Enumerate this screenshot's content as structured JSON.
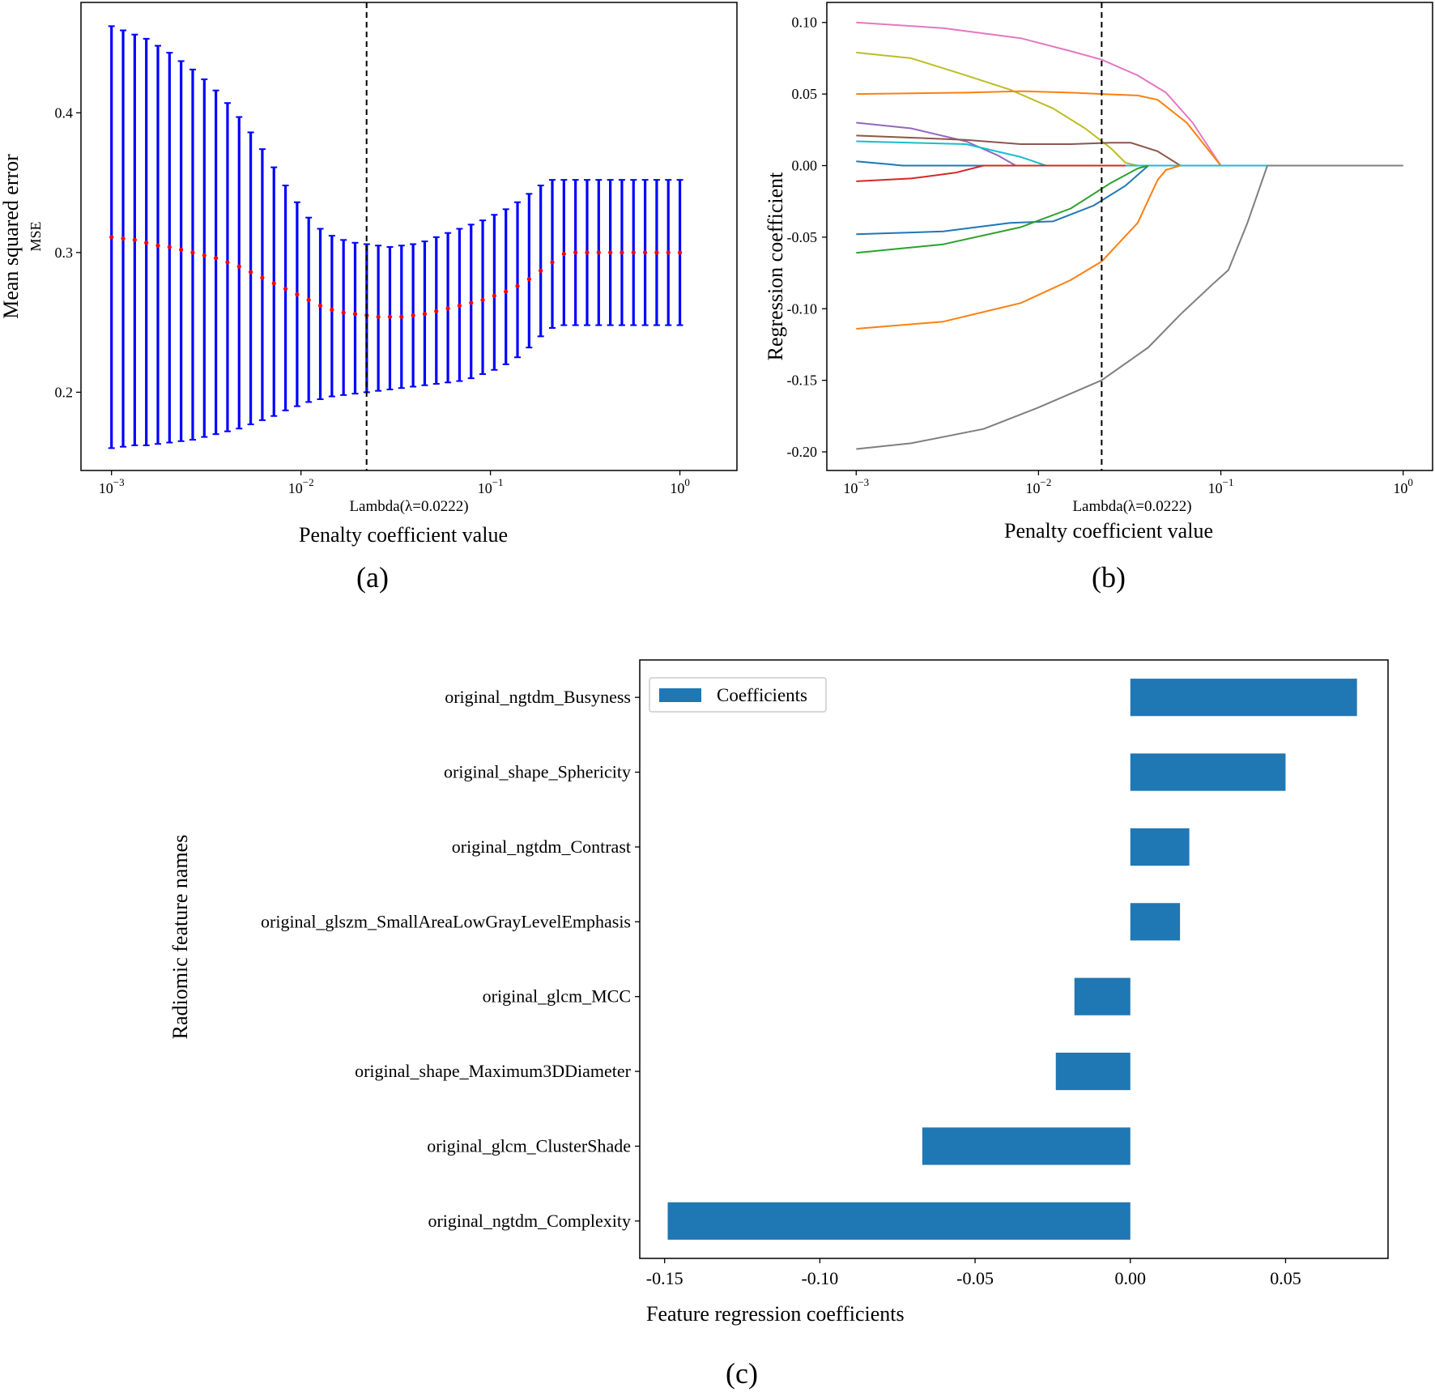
{
  "chart_data": [
    {
      "id": "a",
      "type": "errorbar",
      "panel_label": "(a)",
      "xlabel": "Penalty coefficient value",
      "xlabel_sub": "Lambda(λ=0.0222)",
      "ylabel": "Mean squared error",
      "ylabel_sub": "MSE",
      "xscale": "log",
      "xlim": [
        0.00069,
        2.0
      ],
      "ylim": [
        0.144,
        0.479
      ],
      "xticks": [
        {
          "value": 0.001,
          "base": "10",
          "exp": "−3"
        },
        {
          "value": 0.01,
          "base": "10",
          "exp": "−2"
        },
        {
          "value": 0.1,
          "base": "10",
          "exp": "−1"
        },
        {
          "value": 1,
          "base": "10",
          "exp": "0"
        }
      ],
      "yticks": [
        {
          "value": 0.2,
          "label": "0.2"
        },
        {
          "value": 0.3,
          "label": "0.3"
        },
        {
          "value": 0.4,
          "label": "0.4"
        }
      ],
      "vline": 0.0222,
      "lambda_range": [
        0.001,
        1
      ],
      "n_points": 50,
      "mean": [
        0.311,
        0.31,
        0.309,
        0.307,
        0.305,
        0.304,
        0.302,
        0.3,
        0.298,
        0.296,
        0.293,
        0.29,
        0.286,
        0.282,
        0.278,
        0.274,
        0.27,
        0.266,
        0.262,
        0.259,
        0.257,
        0.256,
        0.255,
        0.254,
        0.254,
        0.254,
        0.255,
        0.256,
        0.258,
        0.26,
        0.262,
        0.264,
        0.266,
        0.269,
        0.272,
        0.276,
        0.281,
        0.287,
        0.293,
        0.299,
        0.3,
        0.3,
        0.3,
        0.3,
        0.3,
        0.3,
        0.3,
        0.3,
        0.3,
        0.3
      ],
      "upper": [
        0.462,
        0.459,
        0.456,
        0.453,
        0.448,
        0.443,
        0.437,
        0.431,
        0.424,
        0.416,
        0.407,
        0.397,
        0.386,
        0.374,
        0.361,
        0.348,
        0.336,
        0.325,
        0.317,
        0.312,
        0.309,
        0.307,
        0.306,
        0.305,
        0.304,
        0.305,
        0.306,
        0.308,
        0.311,
        0.314,
        0.317,
        0.32,
        0.323,
        0.327,
        0.331,
        0.336,
        0.342,
        0.348,
        0.352,
        0.352,
        0.352,
        0.352,
        0.352,
        0.352,
        0.352,
        0.352,
        0.352,
        0.352,
        0.352,
        0.352
      ],
      "lower": [
        0.16,
        0.161,
        0.162,
        0.162,
        0.163,
        0.164,
        0.165,
        0.166,
        0.168,
        0.17,
        0.172,
        0.174,
        0.177,
        0.18,
        0.183,
        0.187,
        0.19,
        0.193,
        0.195,
        0.197,
        0.198,
        0.199,
        0.2,
        0.201,
        0.202,
        0.203,
        0.204,
        0.205,
        0.206,
        0.207,
        0.208,
        0.21,
        0.213,
        0.216,
        0.22,
        0.225,
        0.232,
        0.24,
        0.246,
        0.248,
        0.248,
        0.248,
        0.248,
        0.248,
        0.248,
        0.248,
        0.248,
        0.248,
        0.248,
        0.248
      ],
      "colors": {
        "bars": "#0000ff",
        "points": "#ff0000",
        "vline": "#000000"
      }
    },
    {
      "id": "b",
      "type": "line",
      "panel_label": "(b)",
      "xlabel": "Penalty coefficient value",
      "xlabel_sub": "Lambda(λ=0.0222)",
      "ylabel": "Regression coefficient",
      "xscale": "log",
      "xlim": [
        0.00069,
        1.45
      ],
      "ylim": [
        -0.213,
        0.114
      ],
      "xticks": [
        {
          "value": 0.001,
          "base": "10",
          "exp": "−3"
        },
        {
          "value": 0.01,
          "base": "10",
          "exp": "−2"
        },
        {
          "value": 0.1,
          "base": "10",
          "exp": "−1"
        },
        {
          "value": 1,
          "base": "10",
          "exp": "0"
        }
      ],
      "yticks": [
        {
          "value": 0.1,
          "label": "0.10"
        },
        {
          "value": 0.05,
          "label": "0.05"
        },
        {
          "value": 0.0,
          "label": "0.00"
        },
        {
          "value": -0.05,
          "label": "-0.05"
        },
        {
          "value": -0.1,
          "label": "-0.10"
        },
        {
          "value": -0.15,
          "label": "-0.15"
        },
        {
          "value": -0.2,
          "label": "-0.20"
        }
      ],
      "vline": 0.0222,
      "series": [
        {
          "color": "#e377c2",
          "points": [
            [
              0.001,
              0.1
            ],
            [
              0.003,
              0.096
            ],
            [
              0.008,
              0.089
            ],
            [
              0.015,
              0.08
            ],
            [
              0.0222,
              0.074
            ],
            [
              0.035,
              0.063
            ],
            [
              0.05,
              0.051
            ],
            [
              0.07,
              0.03
            ],
            [
              0.1,
              0.0
            ]
          ]
        },
        {
          "color": "#bcbd22",
          "points": [
            [
              0.001,
              0.079
            ],
            [
              0.002,
              0.075
            ],
            [
              0.004,
              0.063
            ],
            [
              0.007,
              0.053
            ],
            [
              0.012,
              0.04
            ],
            [
              0.018,
              0.026
            ],
            [
              0.025,
              0.012
            ],
            [
              0.03,
              0.002
            ],
            [
              0.035,
              0.0
            ]
          ]
        },
        {
          "color": "#ff7f0e",
          "points": [
            [
              0.001,
              0.05
            ],
            [
              0.004,
              0.051
            ],
            [
              0.008,
              0.052
            ],
            [
              0.015,
              0.051
            ],
            [
              0.0222,
              0.05
            ],
            [
              0.035,
              0.049
            ],
            [
              0.045,
              0.046
            ],
            [
              0.065,
              0.03
            ],
            [
              0.1,
              0.0
            ]
          ]
        },
        {
          "color": "#9467bd",
          "points": [
            [
              0.001,
              0.03
            ],
            [
              0.002,
              0.026
            ],
            [
              0.004,
              0.017
            ],
            [
              0.006,
              0.007
            ],
            [
              0.0075,
              0.0
            ]
          ]
        },
        {
          "color": "#8c564b",
          "points": [
            [
              0.001,
              0.021
            ],
            [
              0.004,
              0.018
            ],
            [
              0.008,
              0.015
            ],
            [
              0.015,
              0.015
            ],
            [
              0.025,
              0.016
            ],
            [
              0.032,
              0.016
            ],
            [
              0.045,
              0.01
            ],
            [
              0.06,
              0.0
            ]
          ]
        },
        {
          "color": "#17becf",
          "points": [
            [
              0.001,
              0.017
            ],
            [
              0.004,
              0.015
            ],
            [
              0.008,
              0.006
            ],
            [
              0.011,
              0.0
            ],
            [
              1,
              0.0
            ]
          ]
        },
        {
          "color": "#1f77b4",
          "points": [
            [
              0.001,
              0.003
            ],
            [
              0.0015,
              0.001
            ],
            [
              0.0018,
              0.0
            ],
            [
              0.03,
              0.0
            ]
          ]
        },
        {
          "color": "#d62728",
          "points": [
            [
              0.001,
              -0.011
            ],
            [
              0.002,
              -0.009
            ],
            [
              0.0035,
              -0.005
            ],
            [
              0.005,
              0.0
            ],
            [
              0.03,
              0.0
            ]
          ]
        },
        {
          "color": "#1f77b4",
          "points": [
            [
              0.001,
              -0.048
            ],
            [
              0.003,
              -0.046
            ],
            [
              0.007,
              -0.04
            ],
            [
              0.012,
              -0.039
            ],
            [
              0.02,
              -0.028
            ],
            [
              0.03,
              -0.014
            ],
            [
              0.04,
              0.0
            ]
          ]
        },
        {
          "color": "#2ca02c",
          "points": [
            [
              0.001,
              -0.061
            ],
            [
              0.003,
              -0.055
            ],
            [
              0.008,
              -0.043
            ],
            [
              0.015,
              -0.03
            ],
            [
              0.025,
              -0.012
            ],
            [
              0.035,
              -0.002
            ],
            [
              0.04,
              0.0
            ]
          ]
        },
        {
          "color": "#ff7f0e",
          "points": [
            [
              0.001,
              -0.114
            ],
            [
              0.003,
              -0.109
            ],
            [
              0.008,
              -0.096
            ],
            [
              0.015,
              -0.08
            ],
            [
              0.0222,
              -0.067
            ],
            [
              0.035,
              -0.04
            ],
            [
              0.045,
              -0.01
            ],
            [
              0.05,
              -0.003
            ],
            [
              0.06,
              0.0
            ]
          ]
        },
        {
          "color": "#7f7f7f",
          "points": [
            [
              0.001,
              -0.198
            ],
            [
              0.002,
              -0.194
            ],
            [
              0.005,
              -0.184
            ],
            [
              0.01,
              -0.169
            ],
            [
              0.0222,
              -0.15
            ],
            [
              0.04,
              -0.127
            ],
            [
              0.06,
              -0.104
            ],
            [
              0.09,
              -0.083
            ],
            [
              0.11,
              -0.073
            ],
            [
              0.14,
              -0.04
            ],
            [
              0.18,
              0.0
            ],
            [
              1,
              0.0
            ]
          ]
        }
      ]
    },
    {
      "id": "c",
      "type": "bar",
      "orientation": "horizontal",
      "panel_label": "(c)",
      "xlabel": "Feature regression coefficients",
      "ylabel": "Radiomic feature names",
      "xlim": [
        -0.158,
        0.083
      ],
      "xticks": [
        {
          "value": -0.15,
          "label": "-0.15"
        },
        {
          "value": -0.1,
          "label": "-0.10"
        },
        {
          "value": -0.05,
          "label": "-0.05"
        },
        {
          "value": 0.0,
          "label": "0.00"
        },
        {
          "value": 0.05,
          "label": "0.05"
        }
      ],
      "legend": {
        "label": "Coefficients",
        "position": "top-left"
      },
      "bar_color": "#1f77b4",
      "categories": [
        "original_ngtdm_Busyness",
        "original_shape_Sphericity",
        "original_ngtdm_Contrast",
        "original_glszm_SmallAreaLowGrayLevelEmphasis",
        "original_glcm_MCC",
        "original_shape_Maximum3DDiameter",
        "original_glcm_ClusterShade",
        "original_ngtdm_Complexity"
      ],
      "values": [
        0.073,
        0.05,
        0.019,
        0.016,
        -0.018,
        -0.024,
        -0.067,
        -0.149
      ]
    }
  ]
}
